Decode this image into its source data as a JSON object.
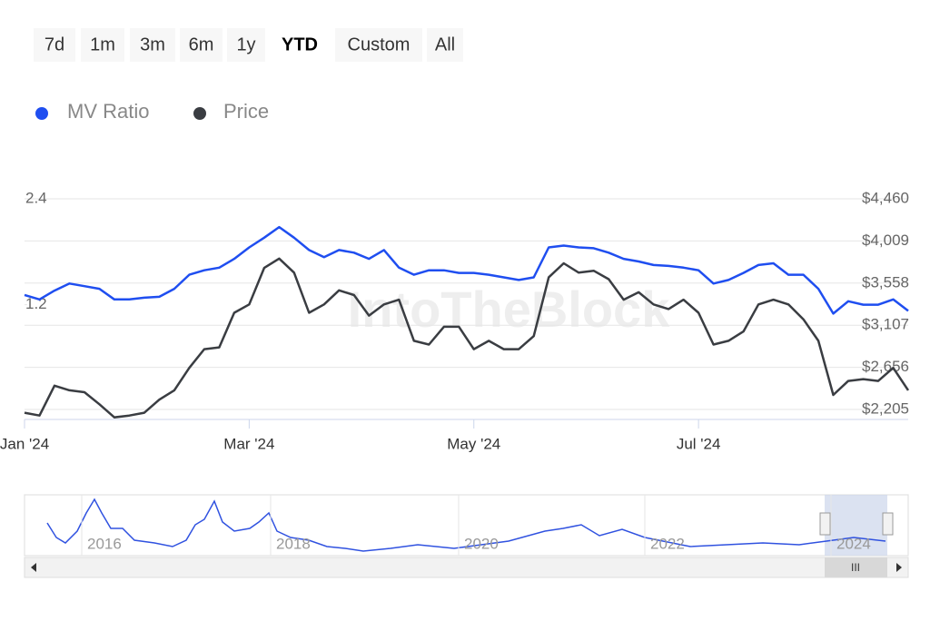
{
  "range_selector": {
    "buttons": [
      "7d",
      "1m",
      "3m",
      "6m",
      "1y",
      "YTD",
      "Custom",
      "All"
    ],
    "selected": "YTD"
  },
  "watermark": "IntoTheBlock",
  "chart_data": {
    "type": "line",
    "categories": [
      "Jan '24",
      null,
      null,
      null,
      null,
      null,
      null,
      null,
      null,
      null,
      null,
      null,
      null,
      null,
      null,
      "Mar '24",
      null,
      null,
      null,
      null,
      null,
      null,
      null,
      null,
      null,
      null,
      null,
      null,
      null,
      null,
      "May '24",
      null,
      null,
      null,
      null,
      null,
      null,
      null,
      null,
      null,
      null,
      null,
      null,
      null,
      null,
      "Jul '24",
      null,
      null,
      null,
      null,
      null,
      null,
      null,
      null,
      null,
      null,
      null,
      null,
      null,
      null
    ],
    "series": [
      {
        "name": "MV Ratio",
        "color": "#1f4ef0",
        "values": [
          1.31,
          1.26,
          1.36,
          1.44,
          1.41,
          1.38,
          1.26,
          1.26,
          1.28,
          1.29,
          1.38,
          1.54,
          1.59,
          1.62,
          1.72,
          1.85,
          1.96,
          2.08,
          1.96,
          1.82,
          1.74,
          1.82,
          1.79,
          1.72,
          1.82,
          1.62,
          1.54,
          1.59,
          1.59,
          1.56,
          1.56,
          1.54,
          1.51,
          1.48,
          1.51,
          1.85,
          1.87,
          1.85,
          1.84,
          1.79,
          1.72,
          1.69,
          1.65,
          1.64,
          1.62,
          1.59,
          1.44,
          1.48,
          1.56,
          1.65,
          1.67,
          1.54,
          1.54,
          1.38,
          1.1,
          1.24,
          1.2,
          1.2,
          1.26,
          1.13
        ]
      },
      {
        "name": "Price",
        "color": "#3a3d42",
        "axis": "y2",
        "values": [
          2170,
          2140,
          2460,
          2410,
          2390,
          2260,
          2120,
          2140,
          2170,
          2310,
          2410,
          2650,
          2850,
          2870,
          3240,
          3330,
          3720,
          3820,
          3670,
          3240,
          3330,
          3480,
          3430,
          3210,
          3330,
          3380,
          2940,
          2900,
          3090,
          3090,
          2850,
          2940,
          2850,
          2850,
          2990,
          3620,
          3770,
          3670,
          3690,
          3600,
          3380,
          3460,
          3330,
          3280,
          3380,
          3240,
          2900,
          2940,
          3040,
          3330,
          3380,
          3330,
          3170,
          2940,
          2360,
          2510,
          2530,
          2510,
          2650,
          2410
        ]
      }
    ],
    "ylim": [
      -0.1,
      2.4
    ],
    "yticks": [
      1.2,
      2.4
    ],
    "y2lim": [
      2098,
      4460
    ],
    "y2ticks": [
      {
        "value": 2205,
        "label": "$2,205"
      },
      {
        "value": 2656,
        "label": "$2,656"
      },
      {
        "value": 3107,
        "label": "$3,107"
      },
      {
        "value": 3558,
        "label": "$3,558"
      },
      {
        "value": 4009,
        "label": "$4,009"
      },
      {
        "value": 4460,
        "label": "$4,460"
      }
    ],
    "grid": true,
    "legend": "top-left"
  },
  "navigator": {
    "labels": [
      "2016",
      "2018",
      "2020",
      "2022",
      "2024"
    ]
  }
}
